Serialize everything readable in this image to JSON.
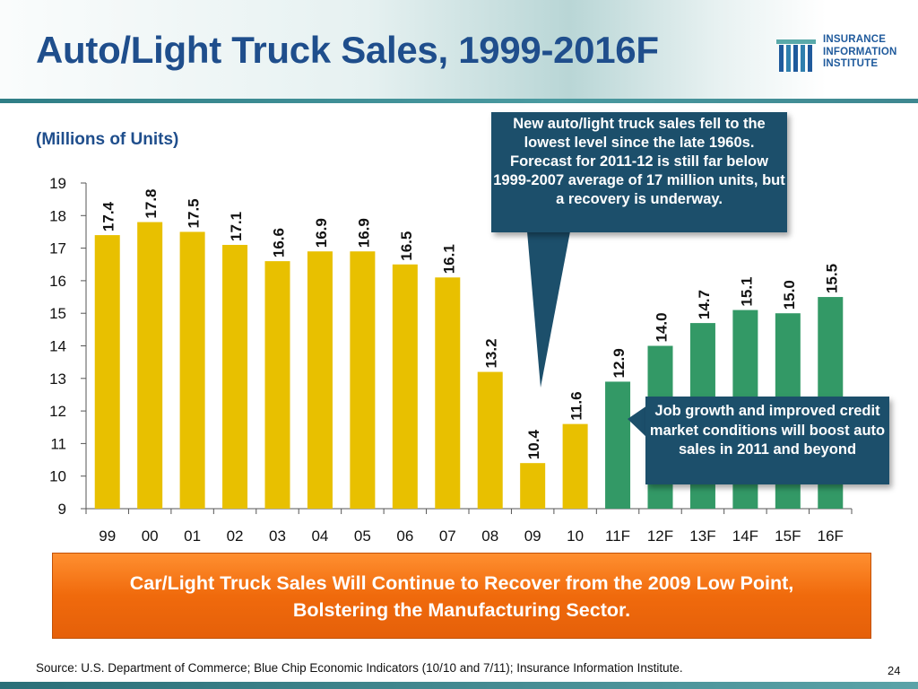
{
  "title": "Auto/Light Truck Sales, 1999-2016F",
  "subtitle": "(Millions of Units)",
  "logo": {
    "line1": "INSURANCE",
    "line2": "INFORMATION",
    "line3": "INSTITUTE"
  },
  "callout_top": "New auto/light truck sales fell to the lowest level since the late 1960s. Forecast for 2011-12 is still far below 1999-2007 average of 17 million units, but a recovery is underway.",
  "callout_right": "Job growth and improved credit market conditions will boost auto sales in 2011 and beyond",
  "banner": {
    "line1": "Car/Light Truck Sales Will Continue to Recover from the 2009 Low Point,",
    "line2": "Bolstering the Manufacturing Sector."
  },
  "source": "Source: U.S. Department of Commerce; Blue Chip Economic Indicators (10/10 and 7/11); Insurance Information Institute.",
  "page_number": "24",
  "colors": {
    "title": "#1f4e8c",
    "actual_bar": "#e8c000",
    "forecast_bar": "#339966",
    "callout": "#1c4f6b",
    "banner": "#f06a0c"
  },
  "chart_data": {
    "type": "bar",
    "categories": [
      "99",
      "00",
      "01",
      "02",
      "03",
      "04",
      "05",
      "06",
      "07",
      "08",
      "09",
      "10",
      "11F",
      "12F",
      "13F",
      "14F",
      "15F",
      "16F"
    ],
    "values": [
      17.4,
      17.8,
      17.5,
      17.1,
      16.6,
      16.9,
      16.9,
      16.5,
      16.1,
      13.2,
      10.4,
      11.6,
      12.9,
      14.0,
      14.7,
      15.1,
      15.0,
      15.5
    ],
    "labels": [
      "17.4",
      "17.8",
      "17.5",
      "17.1",
      "16.6",
      "16.9",
      "16.9",
      "16.5",
      "16.1",
      "13.2",
      "10.4",
      "11.6",
      "12.9",
      "14.0",
      "14.7",
      "15.1",
      "15.0",
      "15.5"
    ],
    "forecast": [
      false,
      false,
      false,
      false,
      false,
      false,
      false,
      false,
      false,
      false,
      false,
      false,
      true,
      true,
      true,
      true,
      true,
      true
    ],
    "yticks": [
      9,
      10,
      11,
      12,
      13,
      14,
      15,
      16,
      17,
      18,
      19
    ],
    "ylim": [
      9,
      19
    ],
    "grid": false,
    "xlabel": "",
    "ylabel": ""
  }
}
